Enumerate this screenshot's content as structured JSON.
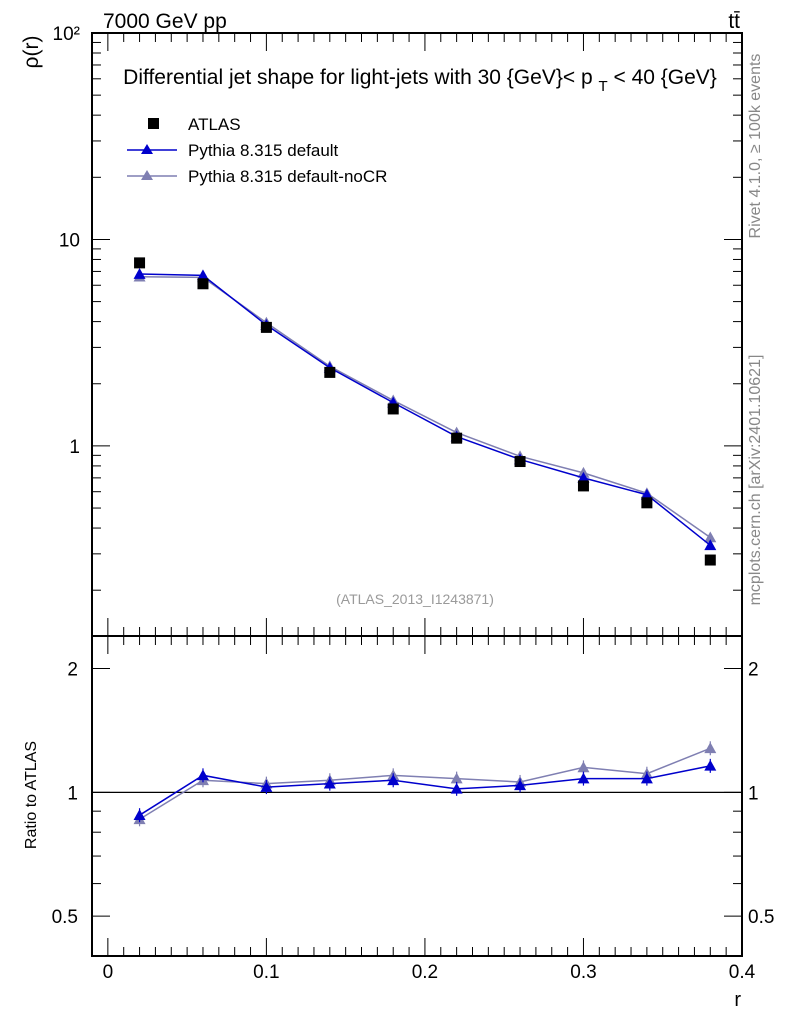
{
  "header": {
    "energy_label": "7000 GeV pp",
    "process_label": "tt̄",
    "title": "Differential jet shape for light-jets with 30 {GeV}< p_T < 40 {GeV}",
    "analysis_label": "(ATLAS_2013_I1243871)",
    "side_rivet": "Rivet 4.1.0, ≥ 100k events",
    "side_mcplots": "mcplots.cern.ch [arXiv:2401.10621]"
  },
  "colors": {
    "data": "#000000",
    "pythia_default": "#0000cc",
    "pythia_nocr": "#7f7fb2"
  },
  "chart_data": {
    "type": "line",
    "title": "Differential jet shape for light-jets with 30 {GeV}< p_T < 40 {GeV}",
    "xlabel": "r",
    "ylabel": "ρ(r)",
    "ratio_ylabel": "Ratio to ATLAS",
    "xlim": [
      -0.01,
      0.4
    ],
    "ylim": [
      0.12,
      100
    ],
    "yscale": "log",
    "ratio_ylim": [
      0.4,
      2.4
    ],
    "ratio_yscale": "log",
    "x_ticks": [
      "0",
      "0.1",
      "0.2",
      "0.3",
      "0.4"
    ],
    "y_ticks": [
      "1",
      "10",
      "10²"
    ],
    "ratio_ticks": [
      "0.5",
      "1",
      "2"
    ],
    "legend": [
      "ATLAS",
      "Pythia 8.315 default",
      "Pythia 8.315 default-noCR"
    ],
    "x": [
      0.02,
      0.06,
      0.1,
      0.14,
      0.18,
      0.22,
      0.26,
      0.3,
      0.34,
      0.38
    ],
    "series": [
      {
        "name": "ATLAS",
        "marker": "square",
        "values": [
          7.7,
          6.1,
          3.75,
          2.27,
          1.51,
          1.09,
          0.84,
          0.64,
          0.53,
          0.28
        ]
      },
      {
        "name": "Pythia 8.315 default",
        "marker": "triangle",
        "values": [
          6.8,
          6.7,
          3.85,
          2.39,
          1.62,
          1.11,
          0.86,
          0.7,
          0.58,
          0.33
        ]
      },
      {
        "name": "Pythia 8.315 default-noCR",
        "marker": "triangle",
        "values": [
          6.6,
          6.55,
          3.95,
          2.43,
          1.66,
          1.16,
          0.89,
          0.74,
          0.59,
          0.36
        ]
      }
    ],
    "ratio_series": [
      {
        "name": "Pythia 8.315 default",
        "values": [
          0.88,
          1.1,
          1.03,
          1.05,
          1.07,
          1.02,
          1.04,
          1.08,
          1.08,
          1.16
        ]
      },
      {
        "name": "Pythia 8.315 default-noCR",
        "values": [
          0.86,
          1.07,
          1.05,
          1.07,
          1.1,
          1.08,
          1.06,
          1.15,
          1.11,
          1.28
        ]
      }
    ]
  }
}
